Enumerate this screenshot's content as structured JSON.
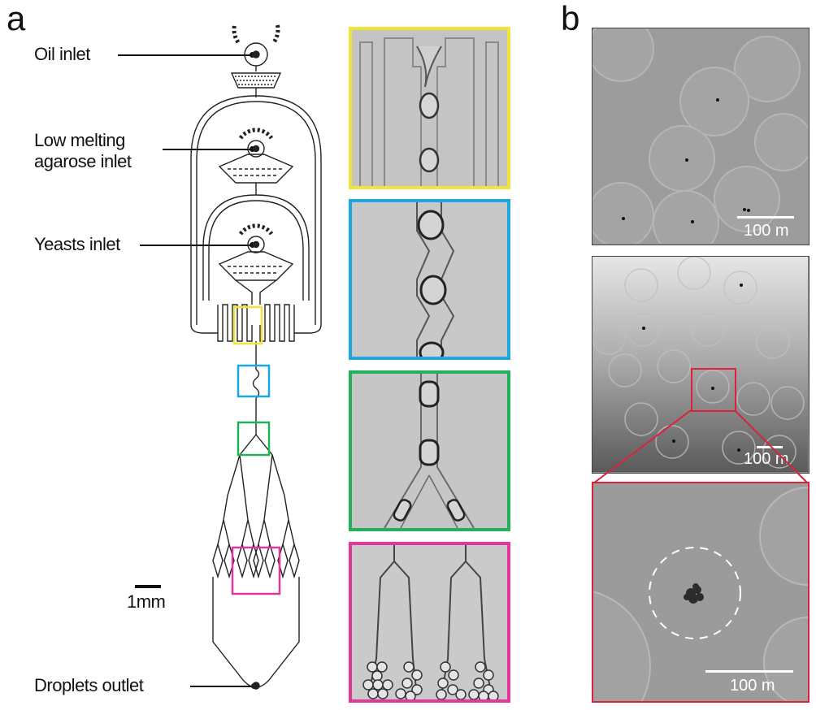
{
  "panel_a": {
    "letter": "a",
    "labels": {
      "oil": "Oil inlet",
      "agarose_line1": "Low melting",
      "agarose_line2": "agarose inlet",
      "yeasts": "Yeasts inlet",
      "outlet": "Droplets outlet"
    },
    "scale": "1mm",
    "colors": {
      "yellow": "#f0e43a",
      "blue": "#1ba7e0",
      "green": "#22b05a",
      "magenta": "#e3389a"
    }
  },
  "panel_b": {
    "letter": "b",
    "scale_top": "100 m",
    "scale_middle": "100 m",
    "scale_bottom": "100 m",
    "zoom_color": "#d9233a"
  }
}
